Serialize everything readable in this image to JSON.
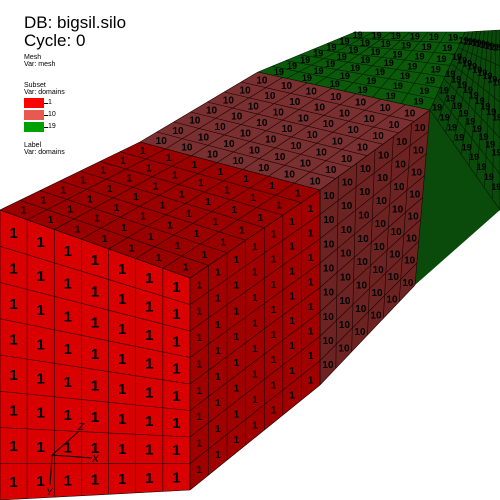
{
  "header": {
    "db": "DB: bigsil.silo",
    "cycle": "Cycle: 0"
  },
  "mesh_plot": {
    "title": "Mesh",
    "var": "Var: mesh"
  },
  "subset_plot": {
    "title": "Subset",
    "var": "Var: domains",
    "entries": [
      {
        "label": "1",
        "color": "#ff0000"
      },
      {
        "label": "10",
        "color": "#e85a50"
      },
      {
        "label": "19",
        "color": "#00a000"
      }
    ]
  },
  "label_plot": {
    "title": "Label",
    "var": "Var: domains"
  },
  "domains": {
    "front": {
      "label": "1",
      "front_color": "#d80000",
      "top_color": "#9a0000",
      "side_color": "#a00000"
    },
    "middle": {
      "label": "10",
      "top_color": "#7a3030",
      "side_color": "#6e2323"
    },
    "back": {
      "label": "19",
      "top_color": "#0a5a0a",
      "side_color": "#0a4a0a"
    }
  },
  "axes": {
    "x": "X",
    "y": "Y",
    "z": "Z"
  }
}
